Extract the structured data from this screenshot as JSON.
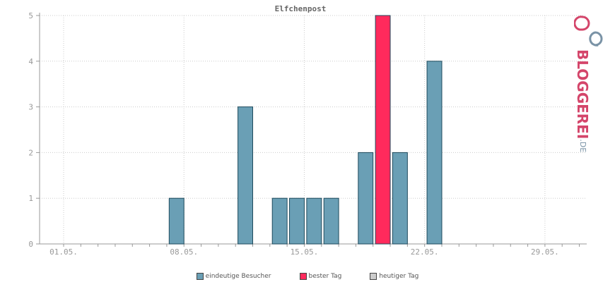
{
  "chart_data": {
    "type": "bar",
    "title": "Elfchenpost",
    "x_tick_labels": [
      "01.05.",
      "08.05.",
      "15.05.",
      "22.05.",
      "29.05."
    ],
    "y_ticks": [
      0,
      1,
      2,
      3,
      4,
      5
    ],
    "ylim": [
      0,
      5
    ],
    "days": [
      1,
      2,
      3,
      4,
      5,
      6,
      7,
      8,
      9,
      10,
      11,
      12,
      13,
      14,
      15,
      16,
      17,
      18,
      19,
      20,
      21,
      22,
      23,
      24,
      25,
      26,
      27,
      28,
      29,
      30,
      31
    ],
    "series": [
      {
        "name": "eindeutige Besucher",
        "color": "#6a9fb5",
        "points": [
          {
            "day": 7,
            "value": 1
          },
          {
            "day": 11,
            "value": 3
          },
          {
            "day": 13,
            "value": 1
          },
          {
            "day": 14,
            "value": 1
          },
          {
            "day": 15,
            "value": 1
          },
          {
            "day": 16,
            "value": 1
          },
          {
            "day": 18,
            "value": 2
          },
          {
            "day": 20,
            "value": 2
          },
          {
            "day": 22,
            "value": 4
          }
        ]
      },
      {
        "name": "bester Tag",
        "color": "#ff2a5c",
        "points": [
          {
            "day": 19,
            "value": 5
          }
        ]
      },
      {
        "name": "heutiger Tag",
        "color": "#cccccc",
        "points": []
      }
    ],
    "grid": true,
    "legend_position": "bottom-center"
  },
  "legend": [
    {
      "label": "eindeutige Besucher",
      "color": "#6a9fb5"
    },
    {
      "label": "bester Tag",
      "color": "#ff2a5c"
    },
    {
      "label": "heutiger Tag",
      "color": "#cccccc"
    }
  ],
  "logo": {
    "brand": "BLOGGEREI",
    "tld": ".DE",
    "colors": {
      "primary": "#d4456a",
      "secondary": "#7a93a6"
    }
  }
}
